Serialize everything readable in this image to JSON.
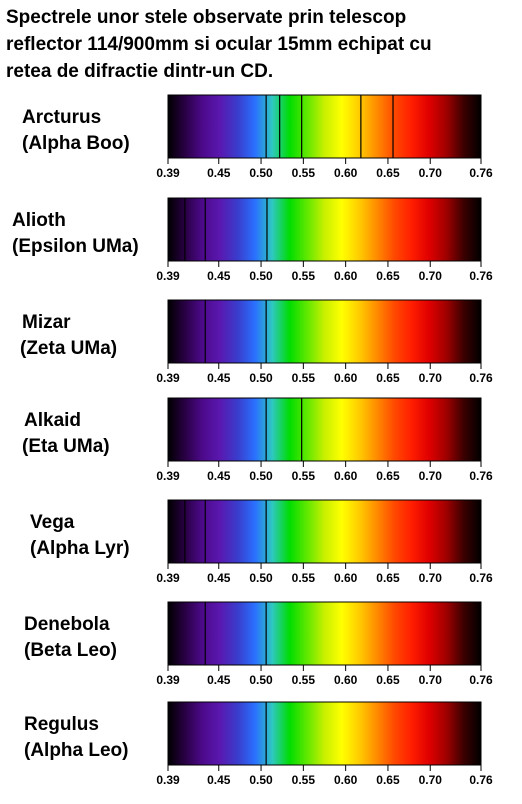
{
  "title": "Spectrele unor stele observate prin telescop\nreflector 114/900mm si ocular 15mm echipat cu\nretea de difractie dintr-un CD.",
  "axis": {
    "min": 0.39,
    "max": 0.76,
    "ticks": [
      "0.39",
      "0.45",
      "0.50",
      "0.55",
      "0.60",
      "0.65",
      "0.70",
      "0.76"
    ]
  },
  "spectrum_colors": [
    "#000000",
    "#2a0045",
    "#4d0a8c",
    "#5a18b0",
    "#3a3ccc",
    "#2a70ff",
    "#2ec8c0",
    "#00dd00",
    "#60e800",
    "#c8f000",
    "#ffff00",
    "#ffcc00",
    "#ff8c00",
    "#ff4a00",
    "#ff1e00",
    "#e00000",
    "#a00000",
    "#3c0000",
    "#000000"
  ],
  "stars": [
    {
      "name": "Arcturus",
      "designation": "(Alpha Boo)",
      "lines": [
        0.506,
        0.522,
        0.548,
        0.618,
        0.656
      ]
    },
    {
      "name": "Alioth",
      "designation": "(Epsilon UMa)",
      "lines": [
        0.41,
        0.434,
        0.507
      ]
    },
    {
      "name": "Mizar",
      "designation": "(Zeta UMa)",
      "lines": [
        0.434,
        0.506
      ]
    },
    {
      "name": "Alkaid",
      "designation": "(Eta UMa)",
      "lines": [
        0.506,
        0.548
      ]
    },
    {
      "name": "Vega",
      "designation": "(Alpha Lyr)",
      "lines": [
        0.41,
        0.434,
        0.506
      ]
    },
    {
      "name": "Denebola",
      "designation": "(Beta Leo)",
      "lines": [
        0.434,
        0.506
      ]
    },
    {
      "name": "Regulus",
      "designation": "(Alpha Leo)",
      "lines": [
        0.506
      ]
    }
  ]
}
